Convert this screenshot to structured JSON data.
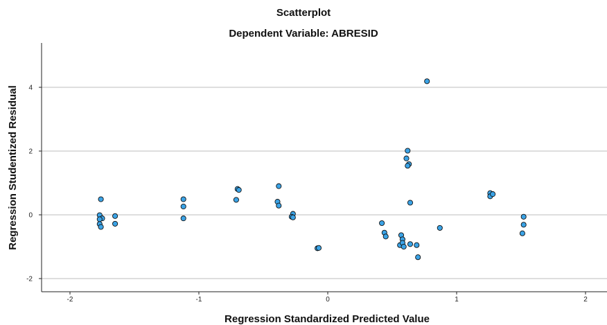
{
  "chart_data": {
    "type": "scatter",
    "title": "Scatterplot",
    "subtitle": "Dependent Variable: ABRESID",
    "xlabel": "Regression Standardized Predicted Value",
    "ylabel": "Regression Studentized Residual",
    "xlim": [
      -2.2,
      2.2
    ],
    "ylim": [
      -2.4,
      5.3
    ],
    "xticks": [
      -2,
      -1,
      0,
      1,
      2
    ],
    "yticks": [
      -2,
      0,
      2,
      4
    ],
    "grid": "horizontal",
    "point_color": "#3ba3e6",
    "point_edge_color": "#111111",
    "points": [
      [
        -1.76,
        0.49
      ],
      [
        -1.77,
        -0.01
      ],
      [
        -1.75,
        -0.11
      ],
      [
        -1.77,
        -0.14
      ],
      [
        -1.77,
        -0.29
      ],
      [
        -1.76,
        -0.38
      ],
      [
        -1.65,
        -0.04
      ],
      [
        -1.65,
        -0.28
      ],
      [
        -1.12,
        0.49
      ],
      [
        -1.12,
        0.26
      ],
      [
        -1.12,
        -0.11
      ],
      [
        -0.7,
        0.81
      ],
      [
        -0.69,
        0.78
      ],
      [
        -0.71,
        0.47
      ],
      [
        -0.38,
        0.9
      ],
      [
        -0.39,
        0.41
      ],
      [
        -0.38,
        0.29
      ],
      [
        -0.27,
        0.03
      ],
      [
        -0.28,
        -0.06
      ],
      [
        -0.27,
        -0.08
      ],
      [
        -0.08,
        -1.05
      ],
      [
        -0.07,
        -1.04
      ],
      [
        0.42,
        -0.26
      ],
      [
        0.44,
        -0.56
      ],
      [
        0.45,
        -0.68
      ],
      [
        0.56,
        -0.95
      ],
      [
        0.57,
        -0.64
      ],
      [
        0.58,
        -0.77
      ],
      [
        0.58,
        -0.88
      ],
      [
        0.59,
        -1.0
      ],
      [
        0.62,
        2.01
      ],
      [
        0.61,
        1.77
      ],
      [
        0.63,
        1.59
      ],
      [
        0.62,
        1.54
      ],
      [
        0.64,
        0.38
      ],
      [
        0.64,
        -0.92
      ],
      [
        0.69,
        -0.95
      ],
      [
        0.7,
        -1.33
      ],
      [
        0.77,
        4.19
      ],
      [
        0.87,
        -0.41
      ],
      [
        1.26,
        0.68
      ],
      [
        1.26,
        0.58
      ],
      [
        1.28,
        0.65
      ],
      [
        1.52,
        -0.06
      ],
      [
        1.52,
        -0.31
      ],
      [
        1.51,
        -0.58
      ]
    ]
  }
}
